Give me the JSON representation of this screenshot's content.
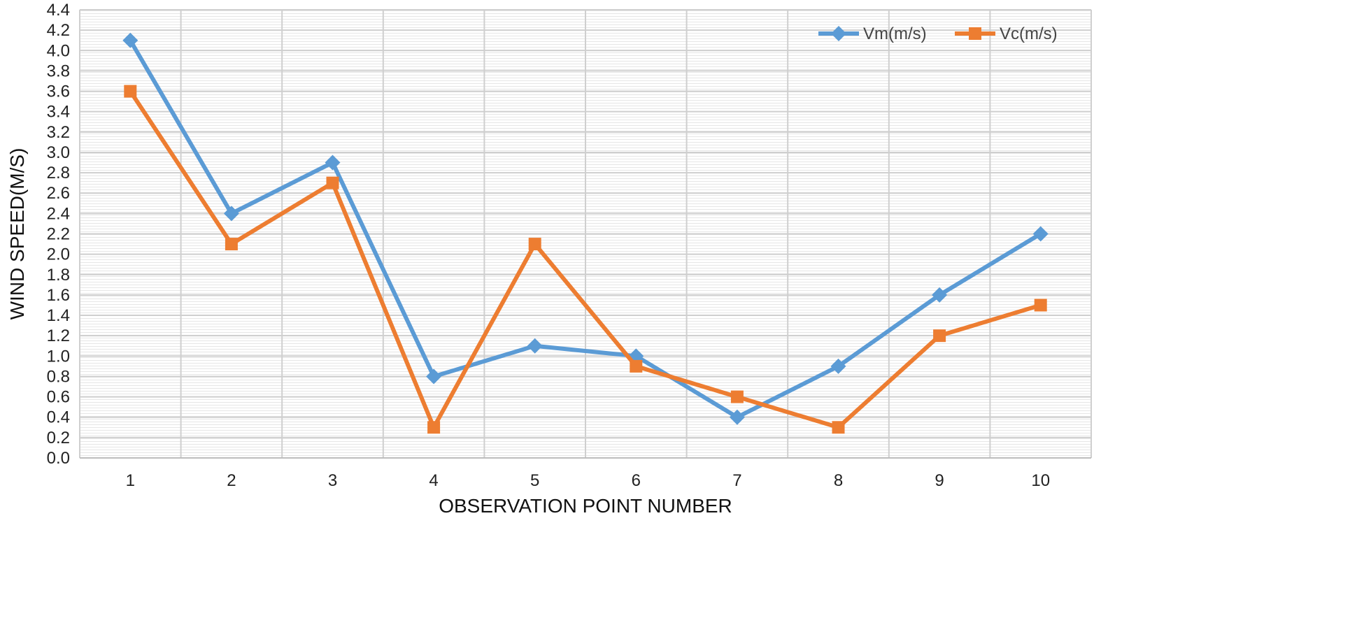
{
  "chart_data": {
    "type": "line",
    "title": "",
    "xlabel": "OBSERVATION POINT NUMBER",
    "ylabel": "WIND SPEED(M/S)",
    "categories": [
      "1",
      "2",
      "3",
      "4",
      "5",
      "6",
      "7",
      "8",
      "9",
      "10"
    ],
    "ylim": [
      0,
      4.4
    ],
    "yticks": [
      "0.0",
      "0.2",
      "0.4",
      "0.6",
      "0.8",
      "1.0",
      "1.2",
      "1.4",
      "1.6",
      "1.8",
      "2.0",
      "2.2",
      "2.4",
      "2.6",
      "2.8",
      "3.0",
      "3.2",
      "3.4",
      "3.6",
      "3.8",
      "4.0",
      "4.2",
      "4.4"
    ],
    "grid": true,
    "legend_position": "top-right",
    "series": [
      {
        "name": "Vm(m/s)",
        "color": "#5B9BD5",
        "marker": "diamond",
        "values": [
          4.1,
          2.4,
          2.9,
          0.8,
          1.1,
          1.0,
          0.4,
          0.9,
          1.6,
          2.2
        ]
      },
      {
        "name": "Vc(m/s)",
        "color": "#ED7D31",
        "marker": "square",
        "values": [
          3.6,
          2.1,
          2.7,
          0.3,
          2.1,
          0.9,
          0.6,
          0.3,
          1.2,
          1.5
        ]
      }
    ]
  }
}
